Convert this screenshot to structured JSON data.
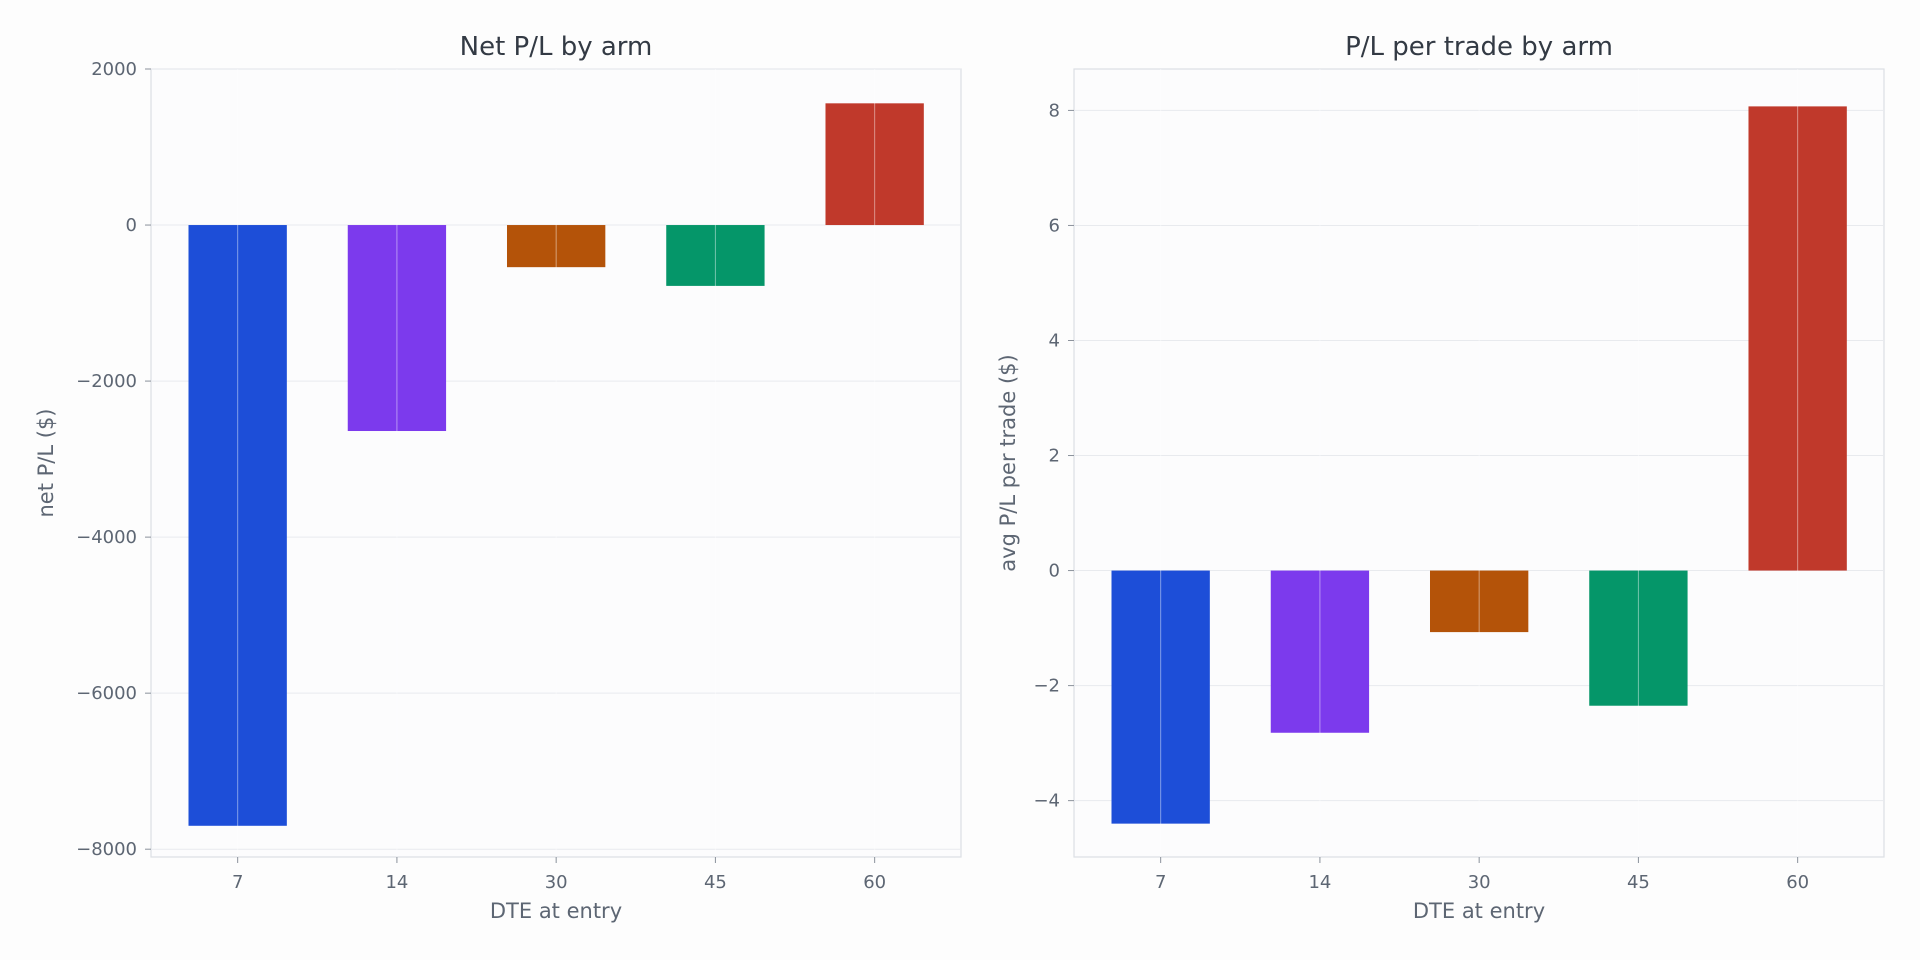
{
  "chart_data": [
    {
      "type": "bar",
      "title": "Net P/L by arm",
      "xlabel": "DTE at entry",
      "ylabel": "net P/L ($)",
      "categories": [
        "7",
        "14",
        "30",
        "45",
        "60"
      ],
      "values": [
        -7700,
        -2640,
        -540,
        -780,
        1560
      ],
      "colors": [
        "#1d4ed8",
        "#7c3aed",
        "#b45309",
        "#059669",
        "#c0392b"
      ],
      "ylim": [
        -8100,
        2000
      ],
      "yticks": [
        2000,
        0,
        -2000,
        -4000,
        -6000,
        -8000
      ],
      "ytick_labels": [
        "2000",
        "0",
        "−2000",
        "−4000",
        "−6000",
        "−8000"
      ],
      "grid": true,
      "legend": "none"
    },
    {
      "type": "bar",
      "title": "P/L per trade by arm",
      "xlabel": "DTE at entry",
      "ylabel": "avg P/L per trade ($)",
      "categories": [
        "7",
        "14",
        "30",
        "45",
        "60"
      ],
      "values": [
        -4.4,
        -2.82,
        -1.07,
        -2.35,
        8.07
      ],
      "colors": [
        "#1d4ed8",
        "#7c3aed",
        "#b45309",
        "#059669",
        "#c0392b"
      ],
      "ylim": [
        -4.98,
        8.72
      ],
      "yticks": [
        8,
        6,
        4,
        2,
        0,
        -2,
        -4
      ],
      "ytick_labels": [
        "8",
        "6",
        "4",
        "2",
        "0",
        "−2",
        "−4"
      ],
      "grid": true,
      "legend": "none"
    }
  ]
}
